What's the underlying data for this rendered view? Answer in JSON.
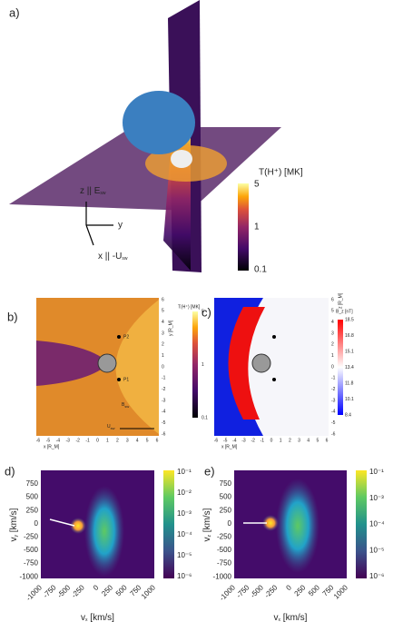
{
  "panel_a": {
    "label": "a)",
    "colorbar_title": "T(H⁺) [MK]",
    "colorbar_ticks": [
      "5",
      "1",
      "0.1"
    ],
    "axis_z": {
      "text": "z || E",
      "sub": "sw"
    },
    "axis_y": "y",
    "axis_x": {
      "text": "x || -U",
      "sub": "sw"
    }
  },
  "panel_b": {
    "label": "b)",
    "points": [
      "P2",
      "P1"
    ],
    "b_label": {
      "text": "B",
      "sub": "sw"
    },
    "u_label": {
      "text": "U",
      "sub": "sw"
    },
    "x_ticks": [
      "-6",
      "-5",
      "-4",
      "-3",
      "-2",
      "-1",
      "0",
      "1",
      "2",
      "3",
      "4",
      "5",
      "6"
    ],
    "x_label": "x [R_M]",
    "y_ticks": [
      "6",
      "5",
      "4",
      "3",
      "2",
      "1",
      "0",
      "-1",
      "-2",
      "-3",
      "-4",
      "-5",
      "-6"
    ],
    "y_label": "y [R_M]",
    "colorbar_title": "T(H⁺) [MK]",
    "colorbar_ticks": [
      "5",
      "1",
      "0.1"
    ]
  },
  "panel_c": {
    "label": "c)",
    "x_ticks": [
      "-6",
      "-5",
      "-4",
      "-3",
      "-2",
      "-1",
      "0",
      "1",
      "2",
      "3",
      "4",
      "5",
      "6"
    ],
    "x_label": "x [R_M]",
    "y_ticks": [
      "6",
      "5",
      "4",
      "3",
      "2",
      "1",
      "0",
      "-1",
      "-2",
      "-3",
      "-4",
      "-5",
      "-6"
    ],
    "y_label": "z [R_M]",
    "colorbar_title": "B_z [nT]",
    "colorbar_ticks": [
      "18.5",
      "16.8",
      "15.1",
      "13.4",
      "11.8",
      "10.1",
      "8.4"
    ]
  },
  "panel_d": {
    "label": "d)",
    "y_ticks": [
      "750",
      "500",
      "250",
      "0",
      "-250",
      "-500",
      "-750",
      "-1000"
    ],
    "x_ticks": [
      "-1000",
      "-750",
      "-500",
      "-250",
      "0",
      "250",
      "500",
      "750",
      "1000"
    ],
    "x_label": {
      "text": "v",
      "sub": "x",
      "unit": " [km/s]"
    },
    "y_label": {
      "text": "v",
      "sub": "y",
      "unit": " [km/s]"
    },
    "colorbar_ticks": [
      "10⁻¹",
      "10⁻²",
      "10⁻³",
      "10⁻⁴",
      "10⁻⁵",
      "10⁻⁶"
    ]
  },
  "panel_e": {
    "label": "e)",
    "y_ticks": [
      "750",
      "500",
      "250",
      "0",
      "-250",
      "-500",
      "-750",
      "-1000"
    ],
    "x_ticks": [
      "-1000",
      "-750",
      "-500",
      "-250",
      "0",
      "250",
      "500",
      "750",
      "1000"
    ],
    "x_label": {
      "text": "v",
      "sub": "x",
      "unit": " [km/s]"
    },
    "y_label": {
      "text": "v",
      "sub": "z",
      "unit": " [km/s]"
    },
    "colorbar_ticks": [
      "10⁻¹",
      "10⁻³",
      "10⁻⁴",
      "10⁻⁵",
      "10⁻⁶"
    ]
  }
}
